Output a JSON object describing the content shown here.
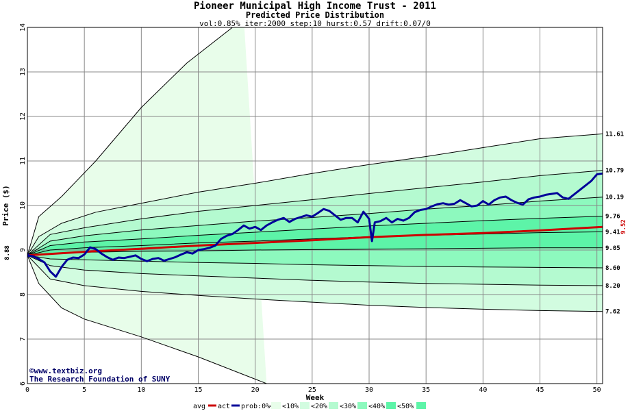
{
  "chart_data": {
    "type": "area",
    "title": "Pioneer Municipal High Income Trust - 2011",
    "subtitle": "Predicted Price Distribution",
    "params": "vol:0.85% iter:2000 step:10 hurst:0.57 drift:0.07/0",
    "xlabel": "Week",
    "ylabel": "Price ($)",
    "xlim": [
      0,
      50.5
    ],
    "ylim": [
      6,
      14
    ],
    "x_ticks": [
      0,
      5,
      10,
      15,
      20,
      25,
      30,
      35,
      40,
      45,
      50
    ],
    "y_ticks": [
      6,
      7,
      8,
      9,
      10,
      11,
      12,
      13,
      14
    ],
    "grid": true,
    "start_label": "8.88",
    "start_value": 8.88,
    "end_avg_label": "9.52",
    "end_avg_value": 9.52,
    "band_colors": [
      "#e8fdea",
      "#d2fce0",
      "#b4fad0",
      "#8df9be",
      "#5df4a8"
    ],
    "band_legend": [
      "prob:0%<",
      "<10%",
      "<20%",
      "<30%",
      "<40%",
      "<50%"
    ],
    "percentile_curves": [
      {
        "end_label": "",
        "pts": [
          [
            0,
            8.88
          ],
          [
            1,
            9.75
          ],
          [
            3,
            10.2
          ],
          [
            6,
            11.0
          ],
          [
            10,
            12.2
          ],
          [
            14,
            13.2
          ],
          [
            19,
            14.2
          ]
        ]
      },
      {
        "end_label": "11.61",
        "pts": [
          [
            0,
            8.88
          ],
          [
            1,
            9.3
          ],
          [
            3,
            9.6
          ],
          [
            6,
            9.85
          ],
          [
            10,
            10.05
          ],
          [
            15,
            10.3
          ],
          [
            20,
            10.5
          ],
          [
            25,
            10.72
          ],
          [
            30,
            10.92
          ],
          [
            35,
            11.1
          ],
          [
            40,
            11.3
          ],
          [
            45,
            11.5
          ],
          [
            50.5,
            11.61
          ]
        ]
      },
      {
        "end_label": "10.79",
        "pts": [
          [
            0,
            8.88
          ],
          [
            2,
            9.35
          ],
          [
            5,
            9.5
          ],
          [
            10,
            9.7
          ],
          [
            15,
            9.87
          ],
          [
            20,
            10.0
          ],
          [
            25,
            10.13
          ],
          [
            30,
            10.27
          ],
          [
            35,
            10.4
          ],
          [
            40,
            10.53
          ],
          [
            45,
            10.67
          ],
          [
            50.5,
            10.79
          ]
        ]
      },
      {
        "end_label": "10.19",
        "pts": [
          [
            0,
            8.88
          ],
          [
            2,
            9.2
          ],
          [
            5,
            9.32
          ],
          [
            10,
            9.45
          ],
          [
            15,
            9.55
          ],
          [
            20,
            9.65
          ],
          [
            25,
            9.73
          ],
          [
            30,
            9.82
          ],
          [
            35,
            9.92
          ],
          [
            40,
            10.0
          ],
          [
            45,
            10.1
          ],
          [
            50.5,
            10.19
          ]
        ]
      },
      {
        "end_label": "9.76",
        "pts": [
          [
            0,
            8.88
          ],
          [
            2,
            9.1
          ],
          [
            5,
            9.18
          ],
          [
            10,
            9.25
          ],
          [
            15,
            9.33
          ],
          [
            20,
            9.4
          ],
          [
            25,
            9.47
          ],
          [
            30,
            9.54
          ],
          [
            35,
            9.6
          ],
          [
            40,
            9.66
          ],
          [
            45,
            9.71
          ],
          [
            50.5,
            9.76
          ]
        ]
      },
      {
        "end_label": "9.41",
        "pts": [
          [
            0,
            8.88
          ],
          [
            2,
            9.0
          ],
          [
            5,
            9.05
          ],
          [
            10,
            9.1
          ],
          [
            15,
            9.16
          ],
          [
            20,
            9.2
          ],
          [
            25,
            9.25
          ],
          [
            30,
            9.3
          ],
          [
            35,
            9.33
          ],
          [
            40,
            9.36
          ],
          [
            45,
            9.39
          ],
          [
            50.5,
            9.41
          ]
        ]
      },
      {
        "end_label": "9.05",
        "pts": [
          [
            0,
            8.88
          ],
          [
            2,
            8.92
          ],
          [
            5,
            8.95
          ],
          [
            10,
            8.97
          ],
          [
            15,
            8.98
          ],
          [
            20,
            9.0
          ],
          [
            25,
            9.01
          ],
          [
            30,
            9.02
          ],
          [
            35,
            9.03
          ],
          [
            40,
            9.04
          ],
          [
            45,
            9.05
          ],
          [
            50.5,
            9.05
          ]
        ]
      },
      {
        "end_label": "8.60",
        "pts": [
          [
            0,
            8.88
          ],
          [
            2,
            8.8
          ],
          [
            5,
            8.78
          ],
          [
            10,
            8.75
          ],
          [
            15,
            8.72
          ],
          [
            20,
            8.7
          ],
          [
            25,
            8.67
          ],
          [
            30,
            8.65
          ],
          [
            35,
            8.63
          ],
          [
            40,
            8.62
          ],
          [
            45,
            8.61
          ],
          [
            50.5,
            8.6
          ]
        ]
      },
      {
        "end_label": "8.20",
        "pts": [
          [
            0,
            8.88
          ],
          [
            2,
            8.65
          ],
          [
            5,
            8.55
          ],
          [
            10,
            8.47
          ],
          [
            15,
            8.42
          ],
          [
            20,
            8.37
          ],
          [
            25,
            8.32
          ],
          [
            30,
            8.28
          ],
          [
            35,
            8.25
          ],
          [
            40,
            8.23
          ],
          [
            45,
            8.21
          ],
          [
            50.5,
            8.2
          ]
        ]
      },
      {
        "end_label": "7.62",
        "pts": [
          [
            0,
            8.88
          ],
          [
            2,
            8.35
          ],
          [
            5,
            8.2
          ],
          [
            10,
            8.07
          ],
          [
            15,
            7.98
          ],
          [
            20,
            7.9
          ],
          [
            25,
            7.83
          ],
          [
            30,
            7.76
          ],
          [
            35,
            7.71
          ],
          [
            40,
            7.67
          ],
          [
            45,
            7.64
          ],
          [
            50.5,
            7.62
          ]
        ]
      },
      {
        "end_label": "",
        "pts": [
          [
            0,
            8.88
          ],
          [
            1,
            8.25
          ],
          [
            3,
            7.7
          ],
          [
            5,
            7.45
          ],
          [
            10,
            7.05
          ],
          [
            15,
            6.6
          ],
          [
            20,
            6.1
          ],
          [
            21,
            6.0
          ]
        ]
      }
    ],
    "series": [
      {
        "name": "avg",
        "color": "#cc0000",
        "values": [
          [
            0,
            8.88
          ],
          [
            5,
            8.96
          ],
          [
            10,
            9.03
          ],
          [
            15,
            9.1
          ],
          [
            20,
            9.16
          ],
          [
            25,
            9.22
          ],
          [
            30,
            9.29
          ],
          [
            35,
            9.34
          ],
          [
            40,
            9.38
          ],
          [
            45,
            9.44
          ],
          [
            50.5,
            9.52
          ]
        ]
      },
      {
        "name": "act",
        "color": "#000099",
        "values": [
          [
            0,
            8.88
          ],
          [
            0.5,
            8.86
          ],
          [
            1,
            8.8
          ],
          [
            1.5,
            8.72
          ],
          [
            2,
            8.52
          ],
          [
            2.5,
            8.4
          ],
          [
            3,
            8.62
          ],
          [
            3.5,
            8.78
          ],
          [
            4,
            8.83
          ],
          [
            4.5,
            8.82
          ],
          [
            5,
            8.9
          ],
          [
            5.5,
            9.06
          ],
          [
            6,
            9.02
          ],
          [
            6.5,
            8.92
          ],
          [
            7,
            8.84
          ],
          [
            7.5,
            8.78
          ],
          [
            8,
            8.83
          ],
          [
            8.5,
            8.82
          ],
          [
            9,
            8.85
          ],
          [
            9.5,
            8.88
          ],
          [
            10,
            8.8
          ],
          [
            10.5,
            8.75
          ],
          [
            11,
            8.8
          ],
          [
            11.5,
            8.82
          ],
          [
            12,
            8.76
          ],
          [
            12.5,
            8.8
          ],
          [
            13,
            8.84
          ],
          [
            13.5,
            8.9
          ],
          [
            14,
            8.95
          ],
          [
            14.5,
            8.92
          ],
          [
            15,
            9.0
          ],
          [
            15.5,
            9.02
          ],
          [
            16,
            9.05
          ],
          [
            16.5,
            9.1
          ],
          [
            17,
            9.25
          ],
          [
            17.5,
            9.32
          ],
          [
            18,
            9.36
          ],
          [
            18.5,
            9.45
          ],
          [
            19,
            9.55
          ],
          [
            19.5,
            9.48
          ],
          [
            20,
            9.52
          ],
          [
            20.5,
            9.45
          ],
          [
            21,
            9.55
          ],
          [
            21.5,
            9.62
          ],
          [
            22,
            9.68
          ],
          [
            22.5,
            9.72
          ],
          [
            23,
            9.63
          ],
          [
            23.5,
            9.7
          ],
          [
            24,
            9.74
          ],
          [
            24.5,
            9.78
          ],
          [
            25,
            9.75
          ],
          [
            25.5,
            9.83
          ],
          [
            26,
            9.92
          ],
          [
            26.5,
            9.88
          ],
          [
            27,
            9.78
          ],
          [
            27.5,
            9.68
          ],
          [
            28,
            9.72
          ],
          [
            28.5,
            9.72
          ],
          [
            29,
            9.62
          ],
          [
            29.5,
            9.86
          ],
          [
            30,
            9.7
          ],
          [
            30.25,
            9.2
          ],
          [
            30.5,
            9.62
          ],
          [
            31,
            9.65
          ],
          [
            31.5,
            9.72
          ],
          [
            32,
            9.62
          ],
          [
            32.5,
            9.7
          ],
          [
            33,
            9.66
          ],
          [
            33.5,
            9.72
          ],
          [
            34,
            9.85
          ],
          [
            34.5,
            9.9
          ],
          [
            35,
            9.92
          ],
          [
            35.5,
            9.98
          ],
          [
            36,
            10.03
          ],
          [
            36.5,
            10.05
          ],
          [
            37,
            10.02
          ],
          [
            37.5,
            10.04
          ],
          [
            38,
            10.12
          ],
          [
            38.5,
            10.05
          ],
          [
            39,
            9.98
          ],
          [
            39.5,
            10.0
          ],
          [
            40,
            10.1
          ],
          [
            40.5,
            10.02
          ],
          [
            41,
            10.12
          ],
          [
            41.5,
            10.18
          ],
          [
            42,
            10.2
          ],
          [
            42.5,
            10.12
          ],
          [
            43,
            10.06
          ],
          [
            43.5,
            10.02
          ],
          [
            44,
            10.14
          ],
          [
            44.5,
            10.18
          ],
          [
            45,
            10.2
          ],
          [
            45.5,
            10.24
          ],
          [
            46,
            10.26
          ],
          [
            46.5,
            10.28
          ],
          [
            47,
            10.18
          ],
          [
            47.5,
            10.15
          ],
          [
            48,
            10.25
          ],
          [
            48.5,
            10.35
          ],
          [
            49,
            10.45
          ],
          [
            49.5,
            10.55
          ],
          [
            50,
            10.7
          ],
          [
            50.5,
            10.72
          ]
        ]
      }
    ],
    "legend": {
      "avg": "avg",
      "act": "act"
    }
  },
  "credits": {
    "site": "©www.textbiz.org",
    "org": "The Research Foundation of SUNY"
  }
}
